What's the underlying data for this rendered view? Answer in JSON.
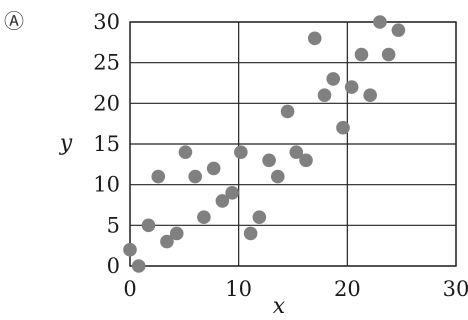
{
  "panel_label": "Ⓐ",
  "chart_data": {
    "type": "scatter",
    "xlabel": "x",
    "ylabel": "y",
    "xlim": [
      0,
      30
    ],
    "ylim": [
      0,
      30
    ],
    "x_ticks": [
      "0",
      "10",
      "20",
      "30"
    ],
    "y_ticks": [
      "0",
      "5",
      "10",
      "15",
      "20",
      "25",
      "30"
    ],
    "grid": true,
    "marker_color": "#808080",
    "points": [
      {
        "x": 0,
        "y": 2
      },
      {
        "x": 0.8,
        "y": 0
      },
      {
        "x": 1.7,
        "y": 5
      },
      {
        "x": 2.6,
        "y": 11
      },
      {
        "x": 3.4,
        "y": 3
      },
      {
        "x": 4.3,
        "y": 4
      },
      {
        "x": 5.1,
        "y": 14
      },
      {
        "x": 6.0,
        "y": 11
      },
      {
        "x": 6.8,
        "y": 6
      },
      {
        "x": 7.7,
        "y": 12
      },
      {
        "x": 8.5,
        "y": 8
      },
      {
        "x": 9.4,
        "y": 9
      },
      {
        "x": 10.2,
        "y": 14
      },
      {
        "x": 11.1,
        "y": 4
      },
      {
        "x": 11.9,
        "y": 6
      },
      {
        "x": 12.8,
        "y": 13
      },
      {
        "x": 13.6,
        "y": 11
      },
      {
        "x": 14.5,
        "y": 19
      },
      {
        "x": 15.3,
        "y": 14
      },
      {
        "x": 16.2,
        "y": 13
      },
      {
        "x": 17.0,
        "y": 28
      },
      {
        "x": 17.9,
        "y": 21
      },
      {
        "x": 18.7,
        "y": 23
      },
      {
        "x": 19.6,
        "y": 17
      },
      {
        "x": 20.4,
        "y": 22
      },
      {
        "x": 21.3,
        "y": 26
      },
      {
        "x": 22.1,
        "y": 21
      },
      {
        "x": 23.0,
        "y": 30
      },
      {
        "x": 23.8,
        "y": 26
      },
      {
        "x": 24.7,
        "y": 29
      }
    ]
  }
}
